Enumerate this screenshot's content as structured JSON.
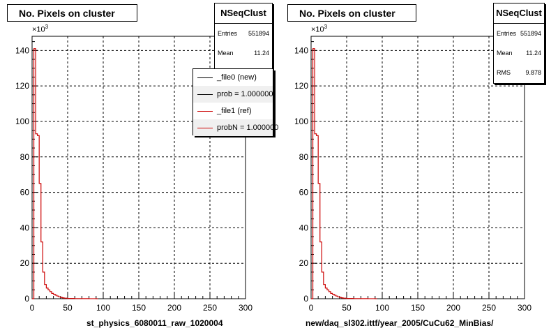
{
  "chart_data": [
    {
      "type": "histogram",
      "title": "No. Pixels on cluster",
      "xlabel": "st_physics_6080011_raw_1020004",
      "ylabel": "",
      "y_exponent": "×10",
      "y_exponent_power": "3",
      "xlim": [
        0,
        300
      ],
      "ylim": [
        0,
        148
      ],
      "grid": true,
      "x_ticks": [
        "0",
        "50",
        "100",
        "150",
        "200",
        "250",
        "300"
      ],
      "y_ticks": [
        "0",
        "20",
        "40",
        "60",
        "80",
        "100",
        "120",
        "140"
      ],
      "stats": {
        "name": "NSeqClust",
        "rows": [
          {
            "label": "Entries",
            "value": "551894"
          },
          {
            "label": "Mean",
            "value": "11.24"
          }
        ]
      },
      "legend": {
        "position": "top-right",
        "entries": [
          {
            "label": "_file0 (new)",
            "color": "#000000"
          },
          {
            "label": "prob = 1.000000",
            "color": "#000000"
          },
          {
            "label": "_file1 (ref)",
            "color": "#cc0000"
          },
          {
            "label": "probN = 1.000000",
            "color": "#cc0000"
          }
        ]
      },
      "series": [
        {
          "color": "#cc0000",
          "bin_width": 2.5,
          "x": [
            0,
            2.5,
            5,
            7.5,
            10,
            12.5,
            15,
            17.5,
            20,
            22.5,
            25,
            27.5,
            30,
            32.5,
            35,
            37.5,
            40,
            42.5,
            45,
            50,
            60,
            70,
            80,
            90
          ],
          "values": [
            0,
            141,
            93,
            92,
            65,
            32,
            15,
            8,
            6,
            5,
            4,
            3,
            2.5,
            2,
            1.5,
            1,
            0.7,
            0.5,
            0.3,
            0.15,
            0.08,
            0.04,
            0.02,
            0
          ]
        }
      ]
    },
    {
      "type": "histogram",
      "title": "No. Pixels on cluster",
      "xlabel": "new/daq_sl302.ittf/year_2005/CuCu62_MinBias/",
      "ylabel": "",
      "y_exponent": "×10",
      "y_exponent_power": "3",
      "xlim": [
        0,
        300
      ],
      "ylim": [
        0,
        148
      ],
      "grid": true,
      "x_ticks": [
        "0",
        "50",
        "100",
        "150",
        "200",
        "250",
        "300"
      ],
      "y_ticks": [
        "0",
        "20",
        "40",
        "60",
        "80",
        "100",
        "120",
        "140"
      ],
      "stats": {
        "name": "NSeqClust",
        "rows": [
          {
            "label": "Entries",
            "value": "551894"
          },
          {
            "label": "Mean",
            "value": "11.24"
          },
          {
            "label": "RMS",
            "value": "9.878"
          }
        ]
      },
      "series": [
        {
          "color": "#cc0000",
          "bin_width": 2.5,
          "x": [
            0,
            2.5,
            5,
            7.5,
            10,
            12.5,
            15,
            17.5,
            20,
            22.5,
            25,
            27.5,
            30,
            32.5,
            35,
            37.5,
            40,
            42.5,
            45,
            50,
            60,
            70,
            80,
            90
          ],
          "values": [
            0,
            141,
            93,
            92,
            65,
            32,
            15,
            8,
            6,
            5,
            4,
            3,
            2.5,
            2,
            1.5,
            1,
            0.7,
            0.5,
            0.3,
            0.15,
            0.08,
            0.04,
            0.02,
            0
          ]
        }
      ]
    }
  ]
}
